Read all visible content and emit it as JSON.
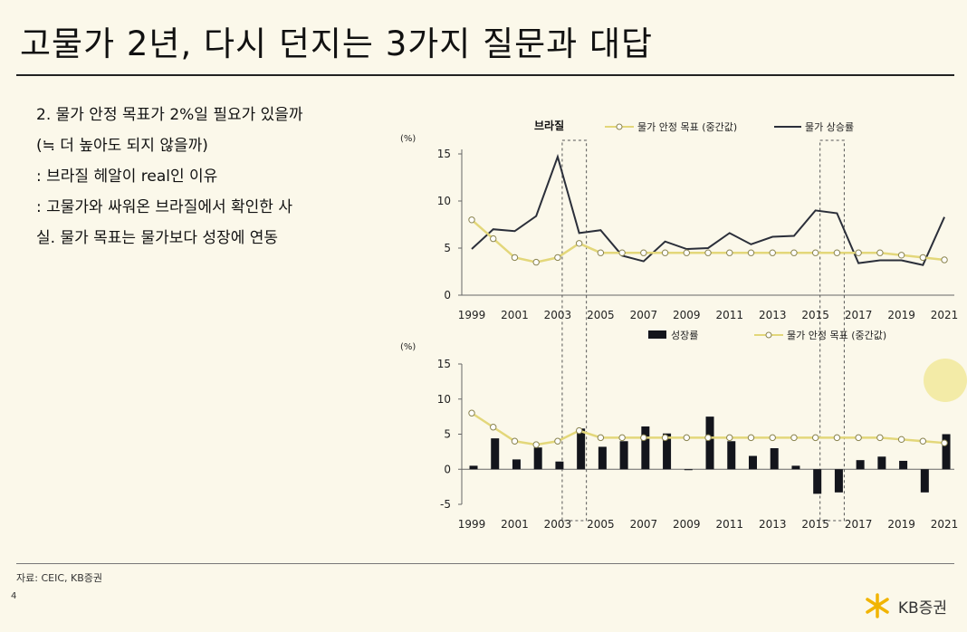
{
  "slide": {
    "title": "고물가 2년, 다시 던지는 3가지 질문과 대답",
    "bullets": [
      "2. 물가 안정 목표가 2%일 필요가 있을까",
      "(≒ 더 높아도 되지 않을까)",
      ": 브라질 헤알이 real인 이유",
      ": 고물가와 싸워온 브라질에서 확인한 사",
      "실. 물가 목표는 물가보다 성장에 연동"
    ],
    "source": "자료: CEIC, KB증권",
    "page_number": "4",
    "logo_text": "KB증권"
  },
  "colors": {
    "target": "#e3d77a",
    "inflation": "#2b2f3a",
    "growth": "#13151c",
    "axis": "#666666"
  },
  "chart_data": [
    {
      "type": "line",
      "title": "브라질",
      "unit": "(%)",
      "x": [
        1999,
        2000,
        2001,
        2002,
        2003,
        2004,
        2005,
        2006,
        2007,
        2008,
        2009,
        2010,
        2011,
        2012,
        2013,
        2014,
        2015,
        2016,
        2017,
        2018,
        2019,
        2020,
        2021
      ],
      "x_tick_labels": [
        "1999",
        "2001",
        "2003",
        "2005",
        "2007",
        "2009",
        "2011",
        "2013",
        "2015",
        "2017",
        "2019",
        "2021"
      ],
      "ylim": [
        0,
        15
      ],
      "y_ticks": [
        0,
        5,
        10,
        15
      ],
      "series": [
        {
          "name": "물가 안정 목표 (중간값)",
          "style": "line-marker",
          "values": [
            8,
            6,
            4,
            3.5,
            4,
            5.5,
            4.5,
            4.5,
            4.5,
            4.5,
            4.5,
            4.5,
            4.5,
            4.5,
            4.5,
            4.5,
            4.5,
            4.5,
            4.5,
            4.5,
            4.25,
            4,
            3.75
          ]
        },
        {
          "name": "물가 상승률",
          "style": "line",
          "values": [
            4.9,
            7.0,
            6.8,
            8.4,
            14.7,
            6.6,
            6.9,
            4.2,
            3.6,
            5.7,
            4.9,
            5.0,
            6.6,
            5.4,
            6.2,
            6.3,
            9.0,
            8.7,
            3.4,
            3.7,
            3.7,
            3.2,
            8.3
          ]
        }
      ],
      "highlight_ranges": [
        [
          2003,
          2004
        ],
        [
          2015,
          2016
        ]
      ],
      "legend_position": "top"
    },
    {
      "type": "bar",
      "unit": "(%)",
      "x": [
        1999,
        2000,
        2001,
        2002,
        2003,
        2004,
        2005,
        2006,
        2007,
        2008,
        2009,
        2010,
        2011,
        2012,
        2013,
        2014,
        2015,
        2016,
        2017,
        2018,
        2019,
        2020,
        2021
      ],
      "x_tick_labels": [
        "1999",
        "2001",
        "2003",
        "2005",
        "2007",
        "2009",
        "2011",
        "2013",
        "2015",
        "2017",
        "2019",
        "2021"
      ],
      "ylim": [
        -5,
        15
      ],
      "y_ticks": [
        -5,
        0,
        5,
        10,
        15
      ],
      "series": [
        {
          "name": "성장률",
          "style": "bar",
          "values": [
            0.5,
            4.4,
            1.4,
            3.1,
            1.1,
            5.8,
            3.2,
            4.0,
            6.1,
            5.1,
            -0.1,
            7.5,
            4.0,
            1.9,
            3.0,
            0.5,
            -3.5,
            -3.3,
            1.3,
            1.8,
            1.2,
            -3.3,
            5.0
          ]
        },
        {
          "name": "물가 안정 목표 (중간값)",
          "style": "line-marker",
          "values": [
            8,
            6,
            4,
            3.5,
            4,
            5.5,
            4.5,
            4.5,
            4.5,
            4.5,
            4.5,
            4.5,
            4.5,
            4.5,
            4.5,
            4.5,
            4.5,
            4.5,
            4.5,
            4.5,
            4.25,
            4,
            3.75
          ]
        }
      ],
      "highlight_ranges": [
        [
          2003,
          2004
        ],
        [
          2015,
          2016
        ]
      ],
      "legend_position": "top"
    }
  ]
}
